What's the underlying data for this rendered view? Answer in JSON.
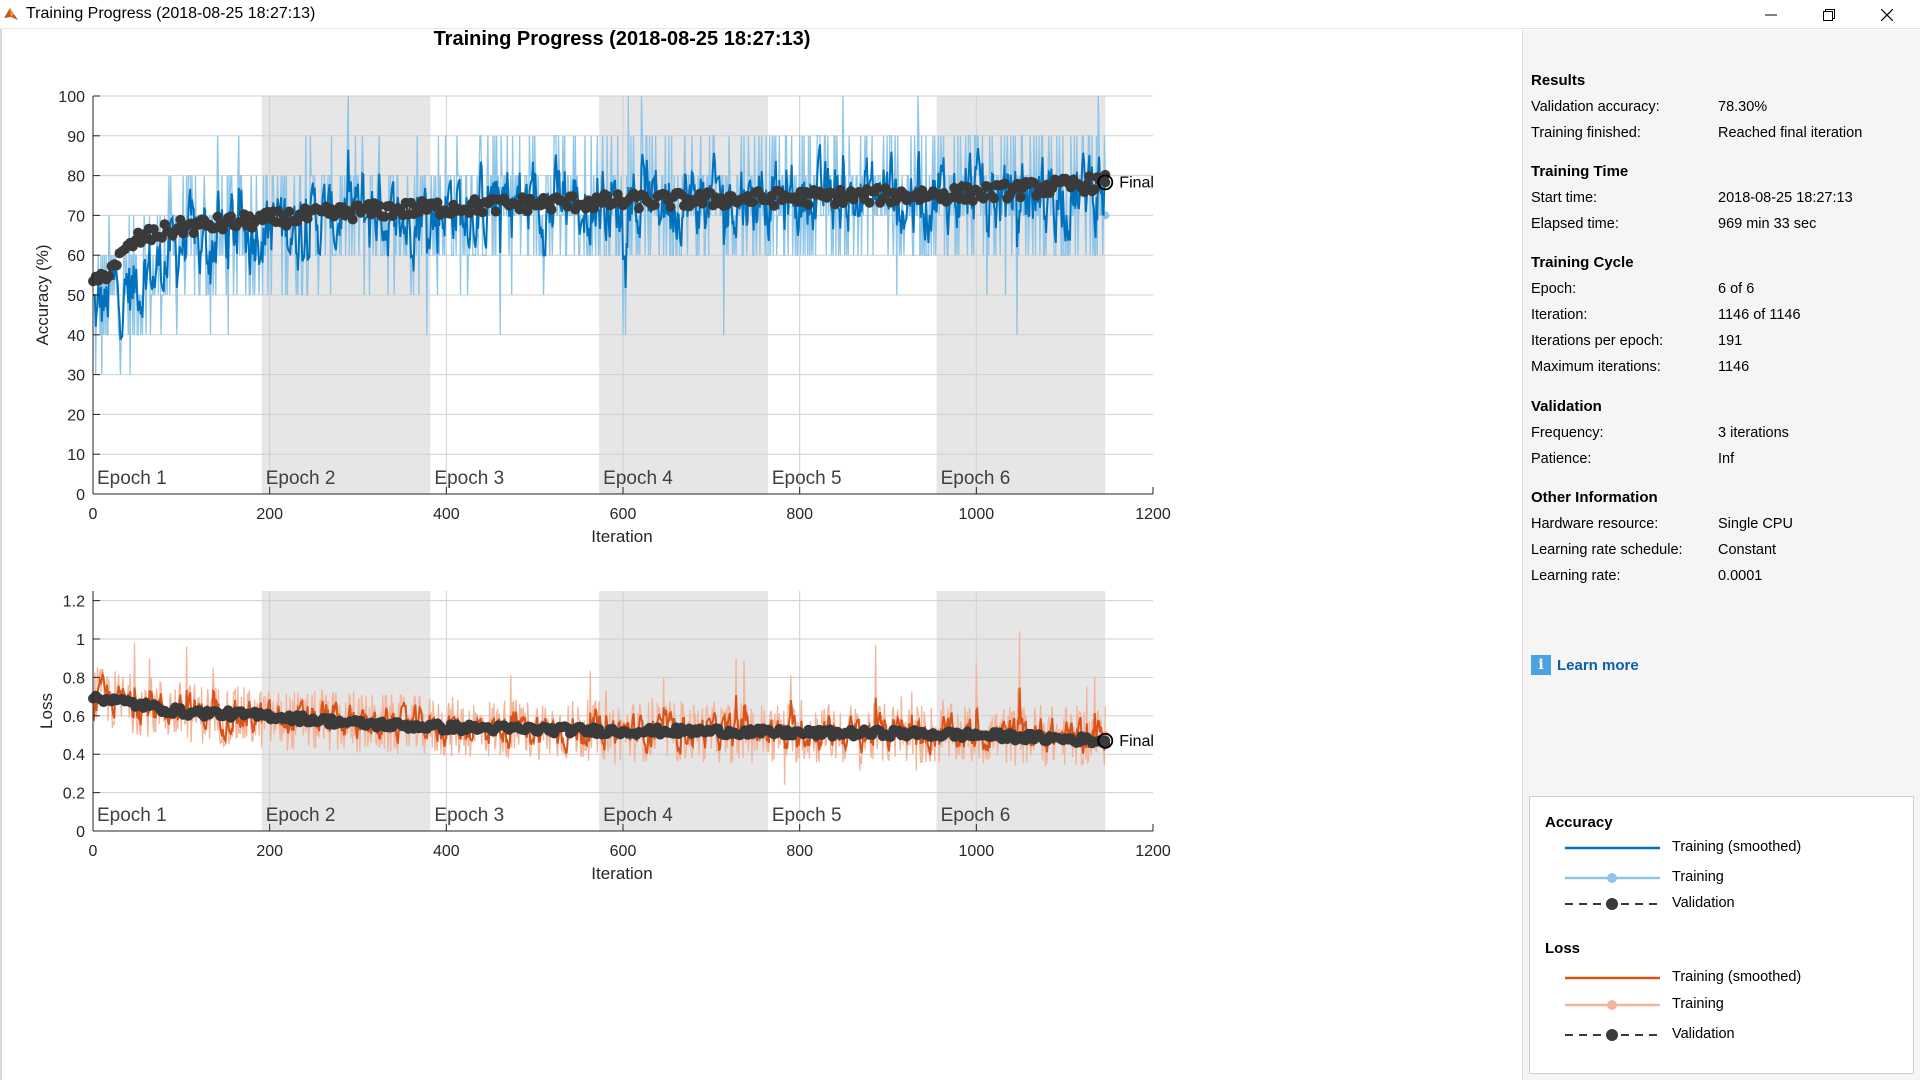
{
  "window": {
    "title": "Training Progress (2018-08-25 18:27:13)",
    "minimize_icon": "minimize-icon",
    "maximize_icon": "restore-icon",
    "close_icon": "close-icon"
  },
  "colors": {
    "training_smoothed_acc": "#0072bd",
    "training_acc": "#8ec5e8",
    "training_smoothed_loss": "#d95319",
    "training_loss": "#f3b59a",
    "validation": "#3a3a3a",
    "epoch_shade": "#e6e6e6"
  },
  "chart_data": [
    {
      "type": "line",
      "title": "Training Progress (2018-08-25 18:27:13)",
      "xlabel": "Iteration",
      "ylabel": "Accuracy (%)",
      "xlim": [
        0,
        1200
      ],
      "ylim": [
        0,
        100
      ],
      "xticks": [
        0,
        200,
        400,
        600,
        800,
        1000,
        1200
      ],
      "yticks": [
        0,
        10,
        20,
        30,
        40,
        50,
        60,
        70,
        80,
        90,
        100
      ],
      "grid": true,
      "epochs": [
        {
          "label": "Epoch 1",
          "start": 0,
          "end": 191
        },
        {
          "label": "Epoch 2",
          "start": 191,
          "end": 382
        },
        {
          "label": "Epoch 3",
          "start": 382,
          "end": 573
        },
        {
          "label": "Epoch 4",
          "start": 573,
          "end": 764
        },
        {
          "label": "Epoch 5",
          "start": 764,
          "end": 955
        },
        {
          "label": "Epoch 6",
          "start": 955,
          "end": 1146
        }
      ],
      "final_marker": {
        "label": "Final",
        "x": 1146,
        "y": 78.3
      },
      "series": [
        {
          "name": "Training",
          "x": [
            0,
            1146
          ],
          "values": [
            50,
            70
          ],
          "range": [
            20,
            100
          ]
        },
        {
          "name": "Training (smoothed)",
          "x": [
            0,
            100,
            200,
            400,
            600,
            800,
            1000,
            1146
          ],
          "values": [
            45,
            62,
            68,
            72,
            73,
            74,
            75,
            76
          ]
        },
        {
          "name": "Validation",
          "x": [
            0,
            50,
            100,
            200,
            300,
            400,
            500,
            600,
            700,
            800,
            900,
            1000,
            1146
          ],
          "values": [
            52,
            64,
            67,
            69,
            71,
            72,
            73,
            73.5,
            74,
            74.5,
            75,
            75.5,
            78.3
          ]
        }
      ]
    },
    {
      "type": "line",
      "xlabel": "Iteration",
      "ylabel": "Loss",
      "xlim": [
        0,
        1200
      ],
      "ylim": [
        0,
        1.25
      ],
      "xticks": [
        0,
        200,
        400,
        600,
        800,
        1000,
        1200
      ],
      "yticks": [
        0,
        0.2,
        0.4,
        0.6,
        0.8,
        1,
        1.2
      ],
      "grid": true,
      "epochs": [
        {
          "label": "Epoch 1",
          "start": 0,
          "end": 191
        },
        {
          "label": "Epoch 2",
          "start": 191,
          "end": 382
        },
        {
          "label": "Epoch 3",
          "start": 382,
          "end": 573
        },
        {
          "label": "Epoch 4",
          "start": 573,
          "end": 764
        },
        {
          "label": "Epoch 5",
          "start": 764,
          "end": 955
        },
        {
          "label": "Epoch 6",
          "start": 955,
          "end": 1146
        }
      ],
      "final_marker": {
        "label": "Final",
        "x": 1146,
        "y": 0.47
      },
      "series": [
        {
          "name": "Training",
          "x": [
            0,
            1146
          ],
          "values": [
            0.68,
            0.5
          ],
          "range": [
            0.18,
            1.2
          ]
        },
        {
          "name": "Training (smoothed)",
          "x": [
            0,
            100,
            200,
            400,
            600,
            800,
            1000,
            1146
          ],
          "values": [
            0.7,
            0.62,
            0.58,
            0.54,
            0.52,
            0.51,
            0.5,
            0.49
          ]
        },
        {
          "name": "Validation",
          "x": [
            0,
            100,
            200,
            300,
            400,
            500,
            600,
            700,
            800,
            900,
            1000,
            1146
          ],
          "values": [
            0.7,
            0.62,
            0.6,
            0.56,
            0.54,
            0.53,
            0.52,
            0.52,
            0.51,
            0.51,
            0.5,
            0.47
          ]
        }
      ]
    }
  ],
  "panel": {
    "results": {
      "heading": "Results",
      "rows": [
        {
          "label": "Validation accuracy:",
          "value": "78.30%"
        },
        {
          "label": "Training finished:",
          "value": "Reached final iteration"
        }
      ]
    },
    "training_time": {
      "heading": "Training Time",
      "rows": [
        {
          "label": "Start time:",
          "value": "2018-08-25 18:27:13"
        },
        {
          "label": "Elapsed time:",
          "value": "969 min 33 sec"
        }
      ]
    },
    "training_cycle": {
      "heading": "Training Cycle",
      "rows": [
        {
          "label": "Epoch:",
          "value": "6 of 6"
        },
        {
          "label": "Iteration:",
          "value": "1146 of 1146"
        },
        {
          "label": "Iterations per epoch:",
          "value": "191"
        },
        {
          "label": "Maximum iterations:",
          "value": "1146"
        }
      ]
    },
    "validation": {
      "heading": "Validation",
      "rows": [
        {
          "label": "Frequency:",
          "value": "3 iterations"
        },
        {
          "label": "Patience:",
          "value": "Inf"
        }
      ]
    },
    "other_information": {
      "heading": "Other Information",
      "rows": [
        {
          "label": "Hardware resource:",
          "value": "Single CPU"
        },
        {
          "label": "Learning rate schedule:",
          "value": "Constant"
        },
        {
          "label": "Learning rate:",
          "value": "0.0001"
        }
      ]
    },
    "learn_more": {
      "icon": "info-icon",
      "label": "Learn more"
    }
  },
  "legend": {
    "accuracy": {
      "heading": "Accuracy",
      "items": [
        "Training (smoothed)",
        "Training",
        "Validation"
      ]
    },
    "loss": {
      "heading": "Loss",
      "items": [
        "Training (smoothed)",
        "Training",
        "Validation"
      ]
    }
  }
}
